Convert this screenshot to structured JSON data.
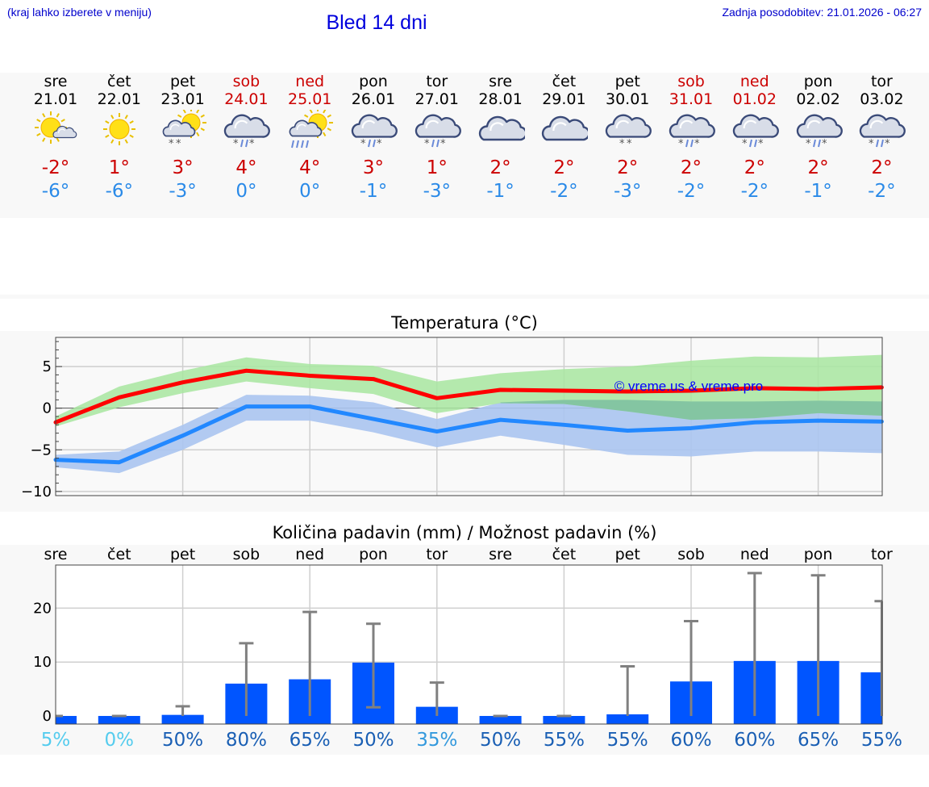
{
  "header": {
    "hint": "(kraj lahko izberete v meniju)",
    "title": "Bled 14 dni",
    "updated": "Zadnja posodobitev: 21.01.2026 - 06:27"
  },
  "days": [
    {
      "name": "sre",
      "date": "21.01",
      "weekend": false,
      "icon": "sun-cloud-icon",
      "tmax": "-2°",
      "tmin": "-6°"
    },
    {
      "name": "čet",
      "date": "22.01",
      "weekend": false,
      "icon": "sun-icon",
      "tmax": "1°",
      "tmin": "-6°"
    },
    {
      "name": "pet",
      "date": "23.01",
      "weekend": false,
      "icon": "sun-cloud-snow-icon",
      "tmax": "3°",
      "tmin": "-3°"
    },
    {
      "name": "sob",
      "date": "24.01",
      "weekend": true,
      "icon": "cloud-sleet-icon",
      "tmax": "4°",
      "tmin": "0°"
    },
    {
      "name": "ned",
      "date": "25.01",
      "weekend": true,
      "icon": "sun-cloud-rain-icon",
      "tmax": "4°",
      "tmin": "0°"
    },
    {
      "name": "pon",
      "date": "26.01",
      "weekend": false,
      "icon": "cloud-sleet-icon",
      "tmax": "3°",
      "tmin": "-1°"
    },
    {
      "name": "tor",
      "date": "27.01",
      "weekend": false,
      "icon": "cloud-sleet-icon",
      "tmax": "1°",
      "tmin": "-3°"
    },
    {
      "name": "sre",
      "date": "28.01",
      "weekend": false,
      "icon": "cloud-icon",
      "tmax": "2°",
      "tmin": "-1°"
    },
    {
      "name": "čet",
      "date": "29.01",
      "weekend": false,
      "icon": "cloud-icon",
      "tmax": "2°",
      "tmin": "-2°"
    },
    {
      "name": "pet",
      "date": "30.01",
      "weekend": false,
      "icon": "cloud-snow-icon",
      "tmax": "2°",
      "tmin": "-3°"
    },
    {
      "name": "sob",
      "date": "31.01",
      "weekend": true,
      "icon": "cloud-sleet-icon",
      "tmax": "2°",
      "tmin": "-2°"
    },
    {
      "name": "ned",
      "date": "01.02",
      "weekend": true,
      "icon": "cloud-sleet-icon",
      "tmax": "2°",
      "tmin": "-2°"
    },
    {
      "name": "pon",
      "date": "02.02",
      "weekend": false,
      "icon": "cloud-sleet-icon",
      "tmax": "2°",
      "tmin": "-1°"
    },
    {
      "name": "tor",
      "date": "03.02",
      "weekend": false,
      "icon": "cloud-sleet-icon",
      "tmax": "2°",
      "tmin": "-2°"
    }
  ],
  "colors": {
    "max_line": "#ff0000",
    "max_band": "#a8e6a0",
    "min_line": "#2288ff",
    "min_band": "#aac4f0",
    "overlap_band": "#7ec0a0",
    "bar": "#0055ff",
    "whisker": "#808080",
    "watermark": "#0000ff",
    "weekend_text": "#cc0000",
    "tmax_text": "#cc0000",
    "tmin_text": "#2a8ae8"
  },
  "chart_data": [
    {
      "type": "line",
      "title": "Temperatura (°C)",
      "watermark": "© vreme.us & vreme.pro",
      "ylim": [
        -10.5,
        8.5
      ],
      "y_ticks": [
        5,
        0,
        -5,
        -10
      ],
      "x": [
        0,
        1,
        2,
        3,
        4,
        5,
        6,
        7,
        8,
        9,
        10,
        11,
        12,
        13
      ],
      "series": [
        {
          "name": "max",
          "values": [
            -1.7,
            1.3,
            3.1,
            4.5,
            3.9,
            3.5,
            1.2,
            2.2,
            2.1,
            2.0,
            2.1,
            2.4,
            2.3,
            2.5
          ],
          "band_upper": [
            -1.0,
            2.6,
            4.5,
            6.1,
            5.3,
            5.1,
            3.2,
            4.2,
            4.7,
            5.0,
            5.7,
            6.2,
            6.1,
            6.4
          ],
          "band_lower": [
            -2.2,
            0.1,
            1.8,
            3.2,
            2.4,
            1.7,
            -0.6,
            0.6,
            0.5,
            -0.4,
            -1.4,
            -1.2,
            -0.6,
            -0.9
          ]
        },
        {
          "name": "min",
          "values": [
            -6.2,
            -6.5,
            -3.3,
            0.2,
            0.2,
            -1.3,
            -2.8,
            -1.4,
            -2.0,
            -2.7,
            -2.4,
            -1.7,
            -1.5,
            -1.6
          ],
          "band_upper": [
            -5.6,
            -5.2,
            -2.0,
            1.6,
            1.5,
            0.7,
            -1.3,
            0.7,
            1.0,
            1.0,
            0.8,
            0.8,
            0.9,
            0.8
          ],
          "band_lower": [
            -7.1,
            -7.8,
            -5.0,
            -1.5,
            -1.5,
            -2.9,
            -4.7,
            -3.3,
            -4.4,
            -5.6,
            -5.8,
            -5.2,
            -5.2,
            -5.4
          ]
        }
      ]
    },
    {
      "type": "bar",
      "title": "Količina padavin (mm) / Možnost padavin (%)",
      "ylim": [
        -1.5,
        28
      ],
      "y_ticks": [
        20,
        10,
        0
      ],
      "categories": [
        "sre",
        "čet",
        "pet",
        "sob",
        "ned",
        "pon",
        "tor",
        "sre",
        "čet",
        "pet",
        "sob",
        "ned",
        "pon",
        "tor"
      ],
      "values": [
        0,
        0,
        0.2,
        6,
        6.8,
        9.9,
        1.7,
        0,
        0,
        0.3,
        6.4,
        10.2,
        10.2,
        8.1
      ],
      "whisker_low": [
        0,
        0,
        0,
        0,
        0,
        1.6,
        0,
        0,
        0,
        0,
        0,
        0,
        0,
        0
      ],
      "whisker_high": [
        0,
        0,
        1.8,
        13.5,
        19.3,
        17.1,
        6.2,
        0,
        0,
        9.2,
        17.6,
        26.5,
        26.1,
        21.3
      ],
      "chance_labels": [
        "5%",
        "0%",
        "50%",
        "80%",
        "65%",
        "50%",
        "35%",
        "50%",
        "55%",
        "55%",
        "60%",
        "60%",
        "65%",
        "55%"
      ],
      "chance_colors": [
        "#55ccee",
        "#55ccee",
        "#1a5fb4",
        "#1a5fb4",
        "#1a5fb4",
        "#1a5fb4",
        "#3399dd",
        "#1a5fb4",
        "#1a5fb4",
        "#1a5fb4",
        "#1a5fb4",
        "#1a5fb4",
        "#1a5fb4",
        "#1a5fb4"
      ]
    }
  ]
}
